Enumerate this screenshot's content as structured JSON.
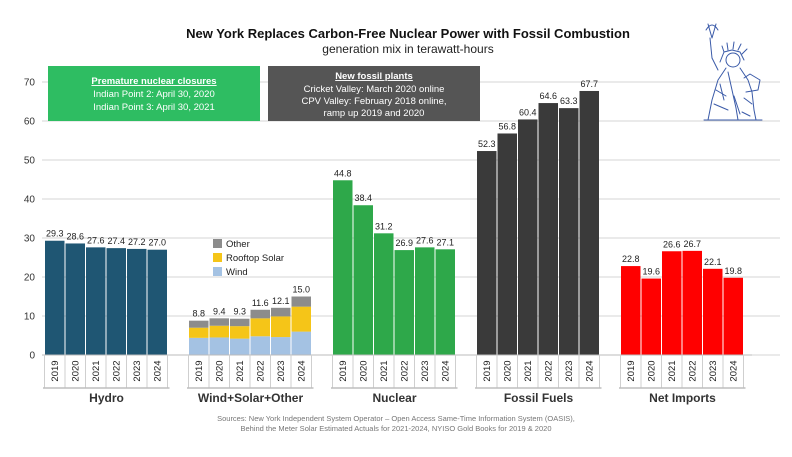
{
  "chart_data": {
    "type": "bar",
    "title": "New York Replaces Carbon-Free Nuclear Power with Fossil Combustion",
    "subtitle": "generation mix in terawatt-hours",
    "ylim": [
      0,
      70
    ],
    "yticks": [
      0,
      10,
      20,
      30,
      40,
      50,
      60,
      70
    ],
    "grid": true,
    "years": [
      "2019",
      "2020",
      "2021",
      "2022",
      "2023",
      "2024"
    ],
    "groups": [
      {
        "name": "Hydro",
        "color": "#1f5673",
        "values": [
          29.3,
          28.6,
          27.6,
          27.4,
          27.2,
          27.0
        ],
        "labels": [
          "29.3",
          "28.6",
          "27.6",
          "27.4",
          "27.2",
          "27.0"
        ]
      },
      {
        "name": "Wind+Solar+Other",
        "stacked": true,
        "totals": [
          8.8,
          9.4,
          9.3,
          11.6,
          12.1,
          15.0
        ],
        "labels": [
          "8.8",
          "9.4",
          "9.3",
          "11.6",
          "12.1",
          "15.0"
        ],
        "series": [
          {
            "name": "Wind",
            "color": "#a4c2e3",
            "values": [
              4.4,
              4.5,
              4.2,
              4.8,
              4.6,
              6.0
            ]
          },
          {
            "name": "Rooftop Solar",
            "color": "#f5c518",
            "values": [
              2.6,
              3.0,
              3.2,
              4.6,
              5.3,
              6.4
            ]
          },
          {
            "name": "Other",
            "color": "#8c8c8c",
            "values": [
              1.8,
              1.9,
              1.9,
              2.2,
              2.2,
              2.6
            ]
          }
        ]
      },
      {
        "name": "Nuclear",
        "color": "#2ea84a",
        "values": [
          44.8,
          38.4,
          31.2,
          26.9,
          27.6,
          27.1
        ],
        "labels": [
          "44.8",
          "38.4",
          "31.2",
          "26.9",
          "27.6",
          "27.1"
        ]
      },
      {
        "name": "Fossil Fuels",
        "color": "#3a3a3a",
        "values": [
          52.3,
          56.8,
          60.4,
          64.6,
          63.3,
          67.7
        ],
        "labels": [
          "52.3",
          "56.8",
          "60.4",
          "64.6",
          "63.3",
          "67.7"
        ]
      },
      {
        "name": "Net Imports",
        "color": "#ff0000",
        "values": [
          22.8,
          19.6,
          26.6,
          26.7,
          22.1,
          19.8
        ],
        "labels": [
          "22.8",
          "19.6",
          "26.6",
          "26.7",
          "22.1",
          "19.8"
        ]
      }
    ],
    "legend": {
      "position": "inside-wind-solar-group",
      "items": [
        "Other",
        "Rooftop Solar",
        "Wind"
      ]
    },
    "annotations": [
      {
        "id": "nuclear-closures",
        "color": "#2ebd62",
        "title": "Premature nuclear closures",
        "lines": [
          "Indian Point 2: April 30, 2020",
          "Indian Point 3: April 30, 2021"
        ]
      },
      {
        "id": "fossil-plants",
        "color": "#555555",
        "title": "New fossil plants",
        "lines": [
          "Cricket Valley: March 2020 online",
          "CPV Valley: February 2018 online,",
          "ramp up 2019 and 2020"
        ]
      }
    ],
    "source": [
      "Sources: New York Independent System Operator – Open Access Same-Time Information System (OASIS),",
      "Behind the Meter Solar Estimated Actuals for 2021-2024, NYISO Gold Books for 2019 & 2020"
    ]
  }
}
